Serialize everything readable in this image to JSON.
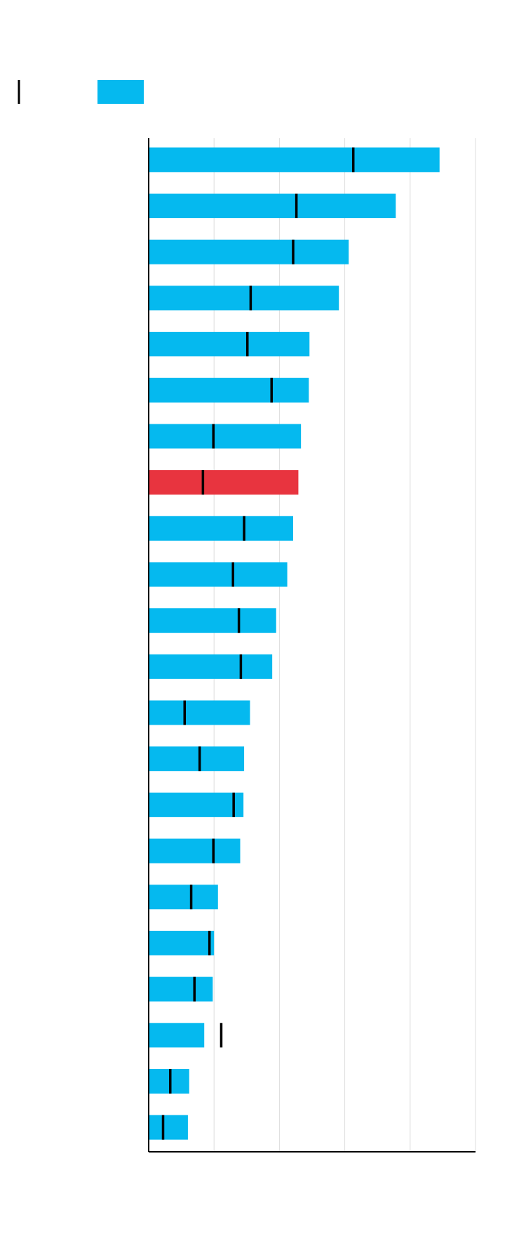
{
  "chart_data": {
    "type": "bar",
    "orientation": "horizontal",
    "categories": [
      null,
      null,
      null,
      null,
      null,
      null,
      null,
      null,
      null,
      null,
      null,
      null,
      null,
      null,
      null,
      null,
      null,
      null,
      null,
      null,
      null,
      null
    ],
    "series": [
      {
        "color": "#05b9ef",
        "colors": [
          "#05b9ef",
          "#05b9ef",
          "#05b9ef",
          "#05b9ef",
          "#05b9ef",
          "#05b9ef",
          "#05b9ef",
          "#e8343f",
          "#05b9ef",
          "#05b9ef",
          "#05b9ef",
          "#05b9ef",
          "#05b9ef",
          "#05b9ef",
          "#05b9ef",
          "#05b9ef",
          "#05b9ef",
          "#05b9ef",
          "#05b9ef",
          "#05b9ef",
          "#05b9ef",
          "#05b9ef"
        ],
        "values": [
          4.45,
          3.78,
          3.06,
          2.91,
          2.46,
          2.45,
          2.33,
          2.29,
          2.21,
          2.12,
          1.95,
          1.89,
          1.55,
          1.46,
          1.45,
          1.4,
          1.06,
          1.0,
          0.98,
          0.85,
          0.62,
          0.6
        ]
      },
      {
        "marker": "tick",
        "color": "#000000",
        "values": [
          3.13,
          2.26,
          2.21,
          1.56,
          1.51,
          1.88,
          0.99,
          0.83,
          1.46,
          1.29,
          1.38,
          1.41,
          0.55,
          0.78,
          1.3,
          0.99,
          0.65,
          0.93,
          0.7,
          1.11,
          0.33,
          0.22
        ]
      }
    ],
    "xlim": [
      0,
      5
    ],
    "xticks": [
      0,
      1,
      2,
      3,
      4,
      5
    ],
    "grid": true
  }
}
